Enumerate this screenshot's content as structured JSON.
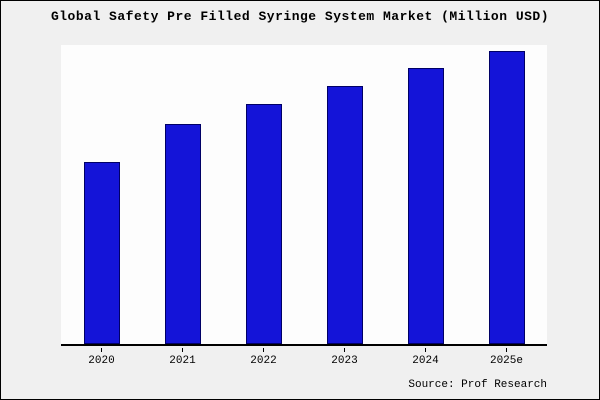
{
  "chart_data": {
    "type": "bar",
    "title": "Global Safety Pre Filled Syringe System Market (Million USD)",
    "categories": [
      "2020",
      "2021",
      "2022",
      "2023",
      "2024",
      "2025e"
    ],
    "values": [
      62,
      75,
      82,
      88,
      94,
      100
    ],
    "ylim": [
      0,
      102
    ],
    "xlabel": "",
    "ylabel": "",
    "grid": false,
    "legend": false,
    "bar_color": "#1414d8",
    "bar_border_color": "#000066"
  },
  "source": "Source: Prof Research",
  "colors": {
    "background": "#f0f0f0",
    "plot_background": "#fdfdfd",
    "axis": "#000000",
    "frame_border": "#000000"
  }
}
